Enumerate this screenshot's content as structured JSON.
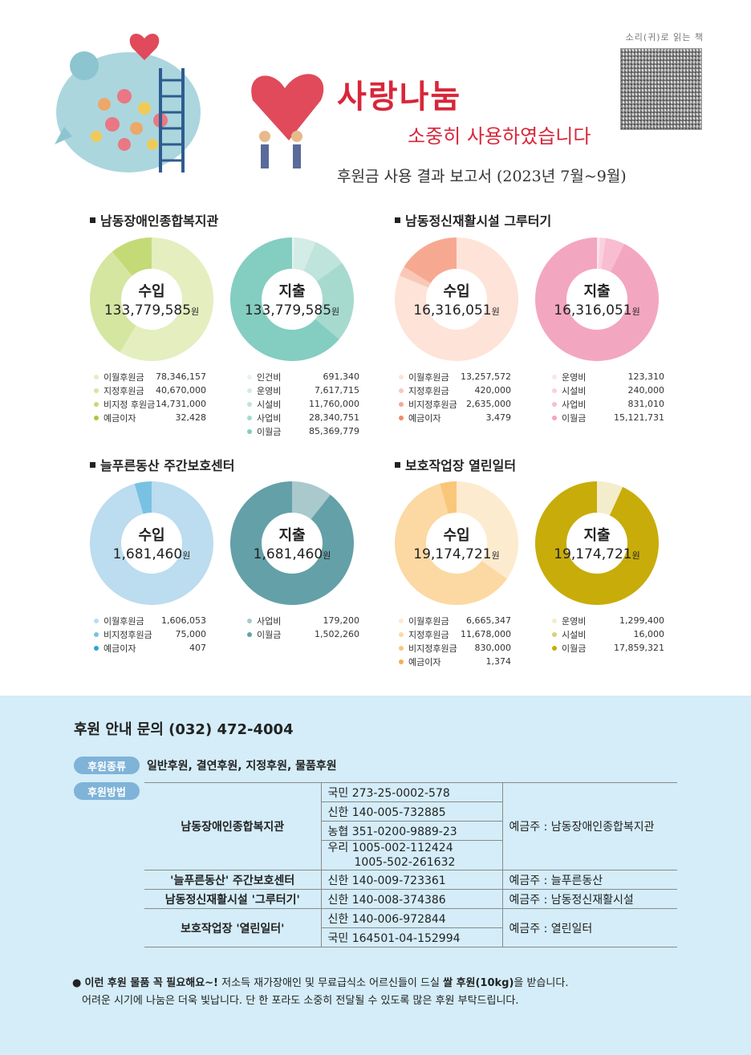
{
  "header": {
    "title": "사랑나눔",
    "subtitle": "소중히 사용하였습니다",
    "report": "후원금 사용 결과 보고서 (2023년 7월~9월)",
    "qr_label": "소리(귀)로 읽는 책"
  },
  "sections": [
    {
      "title": "남동장애인종합복지관",
      "income": {
        "label": "수입",
        "total": "133,779,585",
        "unit": "원",
        "items": [
          {
            "name": "이월후원금",
            "value": "78,346,157",
            "color": "#e4eebf"
          },
          {
            "name": "지정후원금",
            "value": "40,670,000",
            "color": "#d4e6a0"
          },
          {
            "name": "비지정 후원금",
            "value": "14,731,000",
            "color": "#c3da77"
          },
          {
            "name": "예금이자",
            "value": "32,428",
            "color": "#a9c83f"
          }
        ]
      },
      "expense": {
        "label": "지출",
        "total": "133,779,585",
        "unit": "원",
        "items": [
          {
            "name": "인건비",
            "value": "691,340",
            "color": "#e6f4f1"
          },
          {
            "name": "운영비",
            "value": "7,617,715",
            "color": "#d3ece6"
          },
          {
            "name": "시설비",
            "value": "11,760,000",
            "color": "#bfe4db"
          },
          {
            "name": "사업비",
            "value": "28,340,751",
            "color": "#a6dacf"
          },
          {
            "name": "이월금",
            "value": "85,369,779",
            "color": "#84cdc1"
          }
        ]
      }
    },
    {
      "title": "남동정신재활시설 그루터기",
      "income": {
        "label": "수입",
        "total": "16,316,051",
        "unit": "원",
        "items": [
          {
            "name": "이월후원금",
            "value": "13,257,572",
            "color": "#fde3d8"
          },
          {
            "name": "지정후원금",
            "value": "420,000",
            "color": "#fac8b6"
          },
          {
            "name": "비지정후원금",
            "value": "2,635,000",
            "color": "#f6a990"
          },
          {
            "name": "예금이자",
            "value": "3,479",
            "color": "#f08a6a"
          }
        ]
      },
      "expense": {
        "label": "지출",
        "total": "16,316,051",
        "unit": "원",
        "items": [
          {
            "name": "운영비",
            "value": "123,310",
            "color": "#fde4ec"
          },
          {
            "name": "시설비",
            "value": "240,000",
            "color": "#fbd0de"
          },
          {
            "name": "사업비",
            "value": "831,010",
            "color": "#f8bdd0"
          },
          {
            "name": "이월금",
            "value": "15,121,731",
            "color": "#f3a6c0"
          }
        ]
      }
    },
    {
      "title": "늘푸른동산 주간보호센터",
      "income": {
        "label": "수입",
        "total": "1,681,460",
        "unit": "원",
        "items": [
          {
            "name": "이월후원금",
            "value": "1,606,053",
            "color": "#bcdcef"
          },
          {
            "name": "비지정후원금",
            "value": "75,000",
            "color": "#79c1e3"
          },
          {
            "name": "예금이자",
            "value": "407",
            "color": "#2ca4d8"
          }
        ]
      },
      "expense": {
        "label": "지출",
        "total": "1,681,460",
        "unit": "원",
        "items": [
          {
            "name": "사업비",
            "value": "179,200",
            "color": "#a9c9cc"
          },
          {
            "name": "이월금",
            "value": "1,502,260",
            "color": "#64a0a8"
          }
        ]
      }
    },
    {
      "title": "보호작업장 열린일터",
      "income": {
        "label": "수입",
        "total": "19,174,721",
        "unit": "원",
        "items": [
          {
            "name": "이월후원금",
            "value": "6,665,347",
            "color": "#fdebcf"
          },
          {
            "name": "지정후원금",
            "value": "11,678,000",
            "color": "#fcd9a2"
          },
          {
            "name": "비지정후원금",
            "value": "830,000",
            "color": "#f9c77a"
          },
          {
            "name": "예금이자",
            "value": "1,374",
            "color": "#f5b04a"
          }
        ]
      },
      "expense": {
        "label": "지출",
        "total": "19,174,721",
        "unit": "원",
        "items": [
          {
            "name": "운영비",
            "value": "1,299,400",
            "color": "#f4edcc"
          },
          {
            "name": "시설비",
            "value": "16,000",
            "color": "#dccf7d"
          },
          {
            "name": "이월금",
            "value": "17,859,321",
            "color": "#c8ac0a"
          }
        ]
      }
    }
  ],
  "support": {
    "contact": "후원 안내 문의 (032) 472-4004",
    "type_label": "후원종류",
    "types": "일반후원, 결연후원, 지정후원, 물품후원",
    "method_label": "후원방법",
    "rows": [
      {
        "org": "남동장애인종합복지관",
        "accounts": [
          "국민 273-25-0002-578",
          "신한 140-005-732885",
          "농협 351-0200-9889-23",
          "우리 1005-002-112424"
        ],
        "extra": "1005-502-261632",
        "holder": "예금주 : 남동장애인종합복지관"
      },
      {
        "org": "'늘푸른동산' 주간보호센터",
        "accounts": [
          "신한 140-009-723361"
        ],
        "holder": "예금주 : 늘푸른동산"
      },
      {
        "org": "남동정신재활시설 '그루터기'",
        "accounts": [
          "신한 140-008-374386"
        ],
        "holder": "예금주 : 남동정신재활시설"
      },
      {
        "org": "보호작업장 '열린일터'",
        "accounts": [
          "신한 140-006-972844",
          "국민 164501-04-152994"
        ],
        "holder": "예금주 : 열린일터"
      }
    ],
    "note_bold1": "이런 후원 물품 꼭 필요해요~!",
    "note_text1": " 저소득 재가장애인 및 무료급식소 어르신들이 드실 ",
    "note_bold2": "쌀 후원(10kg)",
    "note_text2": "을 받습니다.",
    "note_line2": "어려운 시기에 나눔은 더욱 빛납니다. 단 한 포라도 소중히 전달될 수 있도록 많은 후원 부탁드립니다."
  }
}
